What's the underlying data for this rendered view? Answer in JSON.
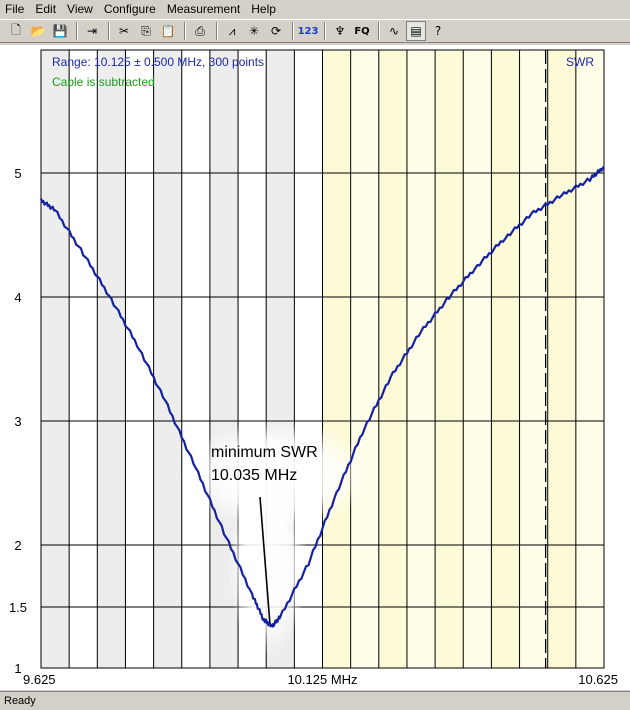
{
  "menu": [
    "File",
    "Edit",
    "View",
    "Configure",
    "Measurement",
    "Help"
  ],
  "toolbar": {
    "buttons": [
      {
        "name": "new-file-icon",
        "glyph": "🗋"
      },
      {
        "name": "open-folder-icon",
        "glyph": "📂"
      },
      {
        "name": "save-icon",
        "glyph": "💾"
      },
      {
        "sep": true
      },
      {
        "name": "export-icon",
        "glyph": "⇥"
      },
      {
        "sep": true
      },
      {
        "name": "cut-icon",
        "glyph": "✂"
      },
      {
        "name": "copy-icon",
        "glyph": "⎘"
      },
      {
        "name": "paste-icon",
        "glyph": "📋"
      },
      {
        "sep": true
      },
      {
        "name": "print-icon",
        "glyph": "⎙"
      },
      {
        "sep": true
      },
      {
        "name": "graph-icon",
        "glyph": "⩘"
      },
      {
        "name": "marker-icon",
        "glyph": "✳"
      },
      {
        "name": "refresh-icon",
        "glyph": "⟳"
      },
      {
        "sep": true
      },
      {
        "name": "numeric-icon",
        "glyph": "123",
        "cls": "blue"
      },
      {
        "sep": true
      },
      {
        "name": "antenna-icon",
        "glyph": "♆"
      },
      {
        "name": "frequency-icon",
        "glyph": "FQ",
        "cls": "fq"
      },
      {
        "sep": true
      },
      {
        "name": "waveform-icon",
        "glyph": "∿"
      },
      {
        "name": "notes-icon",
        "glyph": "▤",
        "pressed": true
      },
      {
        "name": "help-icon",
        "glyph": "?"
      }
    ]
  },
  "status": "Ready",
  "chart_data": {
    "type": "line",
    "series": [
      {
        "name": "SWR"
      }
    ],
    "info_line": "Range: 10.125 ± 0.500 MHz, 300 points",
    "cable_note": "Cable is subtracted",
    "xlim": [
      9.625,
      10.625
    ],
    "ylim": [
      1,
      6.25
    ],
    "x_ticks": [
      9.625,
      10.125,
      10.625
    ],
    "x_tick_labels": [
      "9.625",
      "10.125 MHz",
      "10.625"
    ],
    "y_ticks": [
      1,
      1.5,
      2,
      3,
      4,
      5
    ],
    "y_tick_labels": [
      "1",
      "1.5",
      "2",
      "3",
      "4",
      "5"
    ],
    "grid": true,
    "highlight_band": [
      10.125,
      10.625
    ],
    "dashed_marker_x": 10.5,
    "x": [
      9.625,
      9.65,
      9.7,
      9.75,
      9.8,
      9.85,
      9.9,
      9.95,
      10.0,
      10.02,
      10.035,
      10.05,
      10.1,
      10.15,
      10.2,
      10.25,
      10.3,
      10.35,
      10.4,
      10.45,
      10.5,
      10.55,
      10.6,
      10.625
    ],
    "y": [
      4.78,
      4.7,
      4.35,
      3.98,
      3.58,
      3.12,
      2.62,
      2.1,
      1.6,
      1.4,
      1.34,
      1.42,
      1.85,
      2.42,
      2.95,
      3.38,
      3.72,
      4.0,
      4.25,
      4.48,
      4.68,
      4.82,
      4.95,
      5.05
    ],
    "annotation": {
      "line1": "minimum SWR",
      "line2": "10.035 MHz",
      "x": 10.035,
      "y": 1.34
    }
  }
}
